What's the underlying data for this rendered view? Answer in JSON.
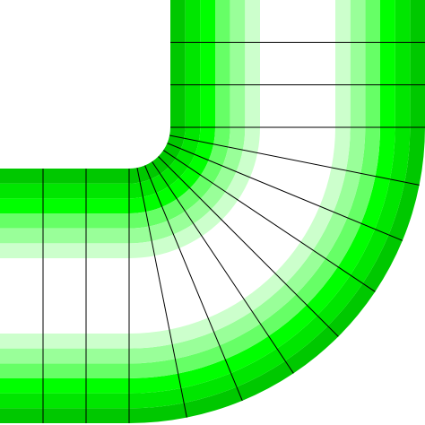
{
  "figure": {
    "title": "",
    "description_visible_text": ""
  },
  "bands": {
    "count": 6,
    "colors": [
      "#00c800",
      "#00e600",
      "#00ff00",
      "#66ff66",
      "#99ff99",
      "#ccffcc"
    ]
  },
  "core": {
    "color": "#ffffff"
  },
  "mesh": {
    "line_color": "#000000",
    "horizontal_leg_divisions": 3,
    "vertical_leg_divisions": 3,
    "elbow_divisions": 8
  }
}
